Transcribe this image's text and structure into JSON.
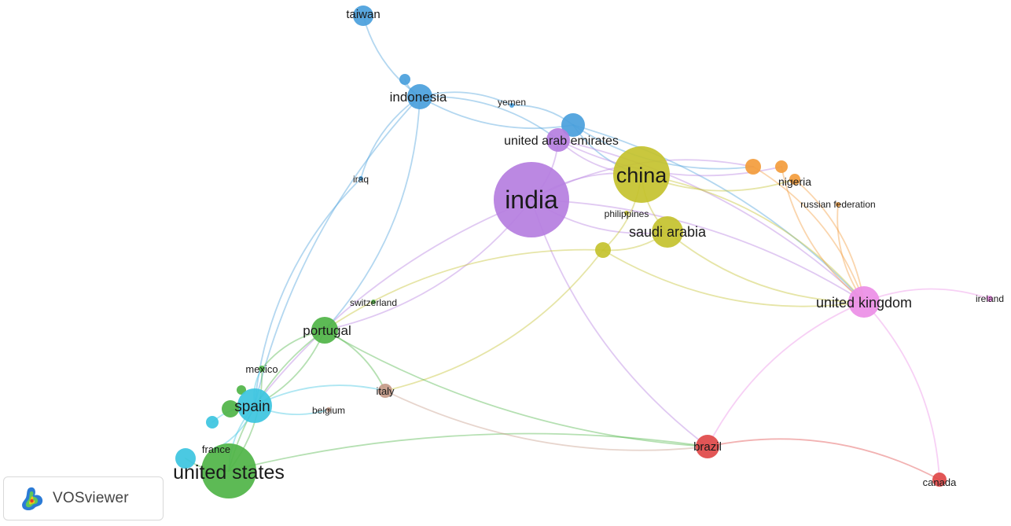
{
  "app": {
    "brand": "VOSviewer",
    "logo_icon": "vosviewer-logo-icon"
  },
  "clusters": {
    "blue": "#4a9fdc",
    "purple": "#b57ee0",
    "olive": "#c4c22e",
    "orange": "#f39c3c",
    "pink": "#ec8ee6",
    "green": "#4fb447",
    "cyan": "#3cc4e0",
    "brown": "#c59a88",
    "red": "#e04848"
  },
  "nodes": [
    {
      "id": "taiwan",
      "label": "taiwan",
      "cluster": "blue"
    },
    {
      "id": "indonesia",
      "label": "indonesia",
      "cluster": "blue"
    },
    {
      "id": "indonesia_small",
      "label": "",
      "cluster": "blue"
    },
    {
      "id": "yemen",
      "label": "yemen",
      "cluster": "blue"
    },
    {
      "id": "blue_node",
      "label": "",
      "cluster": "blue"
    },
    {
      "id": "uae",
      "label": "united arab emirates",
      "cluster": "purple"
    },
    {
      "id": "iraq",
      "label": "iraq",
      "cluster": "blue"
    },
    {
      "id": "india",
      "label": "india",
      "cluster": "purple"
    },
    {
      "id": "china",
      "label": "china",
      "cluster": "olive"
    },
    {
      "id": "philippines",
      "label": "philippines",
      "cluster": "olive"
    },
    {
      "id": "saudi",
      "label": "saudi arabia",
      "cluster": "olive"
    },
    {
      "id": "olive_small",
      "label": "",
      "cluster": "olive"
    },
    {
      "id": "orange1",
      "label": "",
      "cluster": "orange"
    },
    {
      "id": "orange2",
      "label": "",
      "cluster": "orange"
    },
    {
      "id": "nigeria",
      "label": "nigeria",
      "cluster": "orange"
    },
    {
      "id": "russia",
      "label": "russian federation",
      "cluster": "orange"
    },
    {
      "id": "uk",
      "label": "united kingdom",
      "cluster": "pink"
    },
    {
      "id": "ireland",
      "label": "ireland",
      "cluster": "pink"
    },
    {
      "id": "switzerland",
      "label": "switzerland",
      "cluster": "green"
    },
    {
      "id": "portugal",
      "label": "portugal",
      "cluster": "green"
    },
    {
      "id": "mexico",
      "label": "mexico",
      "cluster": "green"
    },
    {
      "id": "green_small",
      "label": "",
      "cluster": "green"
    },
    {
      "id": "spain",
      "label": "spain",
      "cluster": "cyan"
    },
    {
      "id": "green_spain",
      "label": "",
      "cluster": "green"
    },
    {
      "id": "cyan_small",
      "label": "",
      "cluster": "cyan"
    },
    {
      "id": "belgium",
      "label": "belgium",
      "cluster": "brown"
    },
    {
      "id": "italy",
      "label": "italy",
      "cluster": "brown"
    },
    {
      "id": "france",
      "label": "france",
      "cluster": "cyan"
    },
    {
      "id": "france_node",
      "label": "",
      "cluster": "cyan"
    },
    {
      "id": "usa",
      "label": "united states",
      "cluster": "green"
    },
    {
      "id": "brazil",
      "label": "brazil",
      "cluster": "red"
    },
    {
      "id": "canada",
      "label": "canada",
      "cluster": "red"
    }
  ],
  "edges": [
    [
      "taiwan",
      "indonesia"
    ],
    [
      "indonesia",
      "indonesia_small"
    ],
    [
      "indonesia",
      "blue_node"
    ],
    [
      "indonesia",
      "uae"
    ],
    [
      "indonesia",
      "iraq"
    ],
    [
      "indonesia",
      "portugal"
    ],
    [
      "indonesia",
      "spain"
    ],
    [
      "indonesia",
      "yemen"
    ],
    [
      "iraq",
      "spain"
    ],
    [
      "yemen",
      "blue_node"
    ],
    [
      "blue_node",
      "orange1"
    ],
    [
      "blue_node",
      "uk"
    ],
    [
      "blue_node",
      "china"
    ],
    [
      "uae",
      "india"
    ],
    [
      "uae",
      "china"
    ],
    [
      "uae",
      "uk"
    ],
    [
      "uae",
      "orange2"
    ],
    [
      "india",
      "china"
    ],
    [
      "india",
      "saudi"
    ],
    [
      "india",
      "uk"
    ],
    [
      "india",
      "spain"
    ],
    [
      "india",
      "portugal"
    ],
    [
      "india",
      "brazil"
    ],
    [
      "india",
      "orange1"
    ],
    [
      "china",
      "saudi"
    ],
    [
      "china",
      "olive_small"
    ],
    [
      "china",
      "nigeria"
    ],
    [
      "china",
      "uk"
    ],
    [
      "saudi",
      "uk"
    ],
    [
      "saudi",
      "olive_small"
    ],
    [
      "olive_small",
      "portugal"
    ],
    [
      "olive_small",
      "italy"
    ],
    [
      "olive_small",
      "uk"
    ],
    [
      "orange1",
      "uk"
    ],
    [
      "orange2",
      "uk"
    ],
    [
      "nigeria",
      "uk"
    ],
    [
      "russia",
      "uk"
    ],
    [
      "uk",
      "ireland"
    ],
    [
      "uk",
      "brazil"
    ],
    [
      "uk",
      "canada"
    ],
    [
      "portugal",
      "mexico"
    ],
    [
      "portugal",
      "spain"
    ],
    [
      "portugal",
      "usa"
    ],
    [
      "portugal",
      "italy"
    ],
    [
      "portugal",
      "brazil"
    ],
    [
      "spain",
      "mexico"
    ],
    [
      "spain",
      "belgium"
    ],
    [
      "spain",
      "italy"
    ],
    [
      "spain",
      "usa"
    ],
    [
      "spain",
      "france"
    ],
    [
      "spain",
      "cyan_small"
    ],
    [
      "usa",
      "brazil"
    ],
    [
      "usa",
      "mexico"
    ],
    [
      "usa",
      "france_node"
    ],
    [
      "italy",
      "brazil"
    ],
    [
      "brazil",
      "canada"
    ]
  ]
}
